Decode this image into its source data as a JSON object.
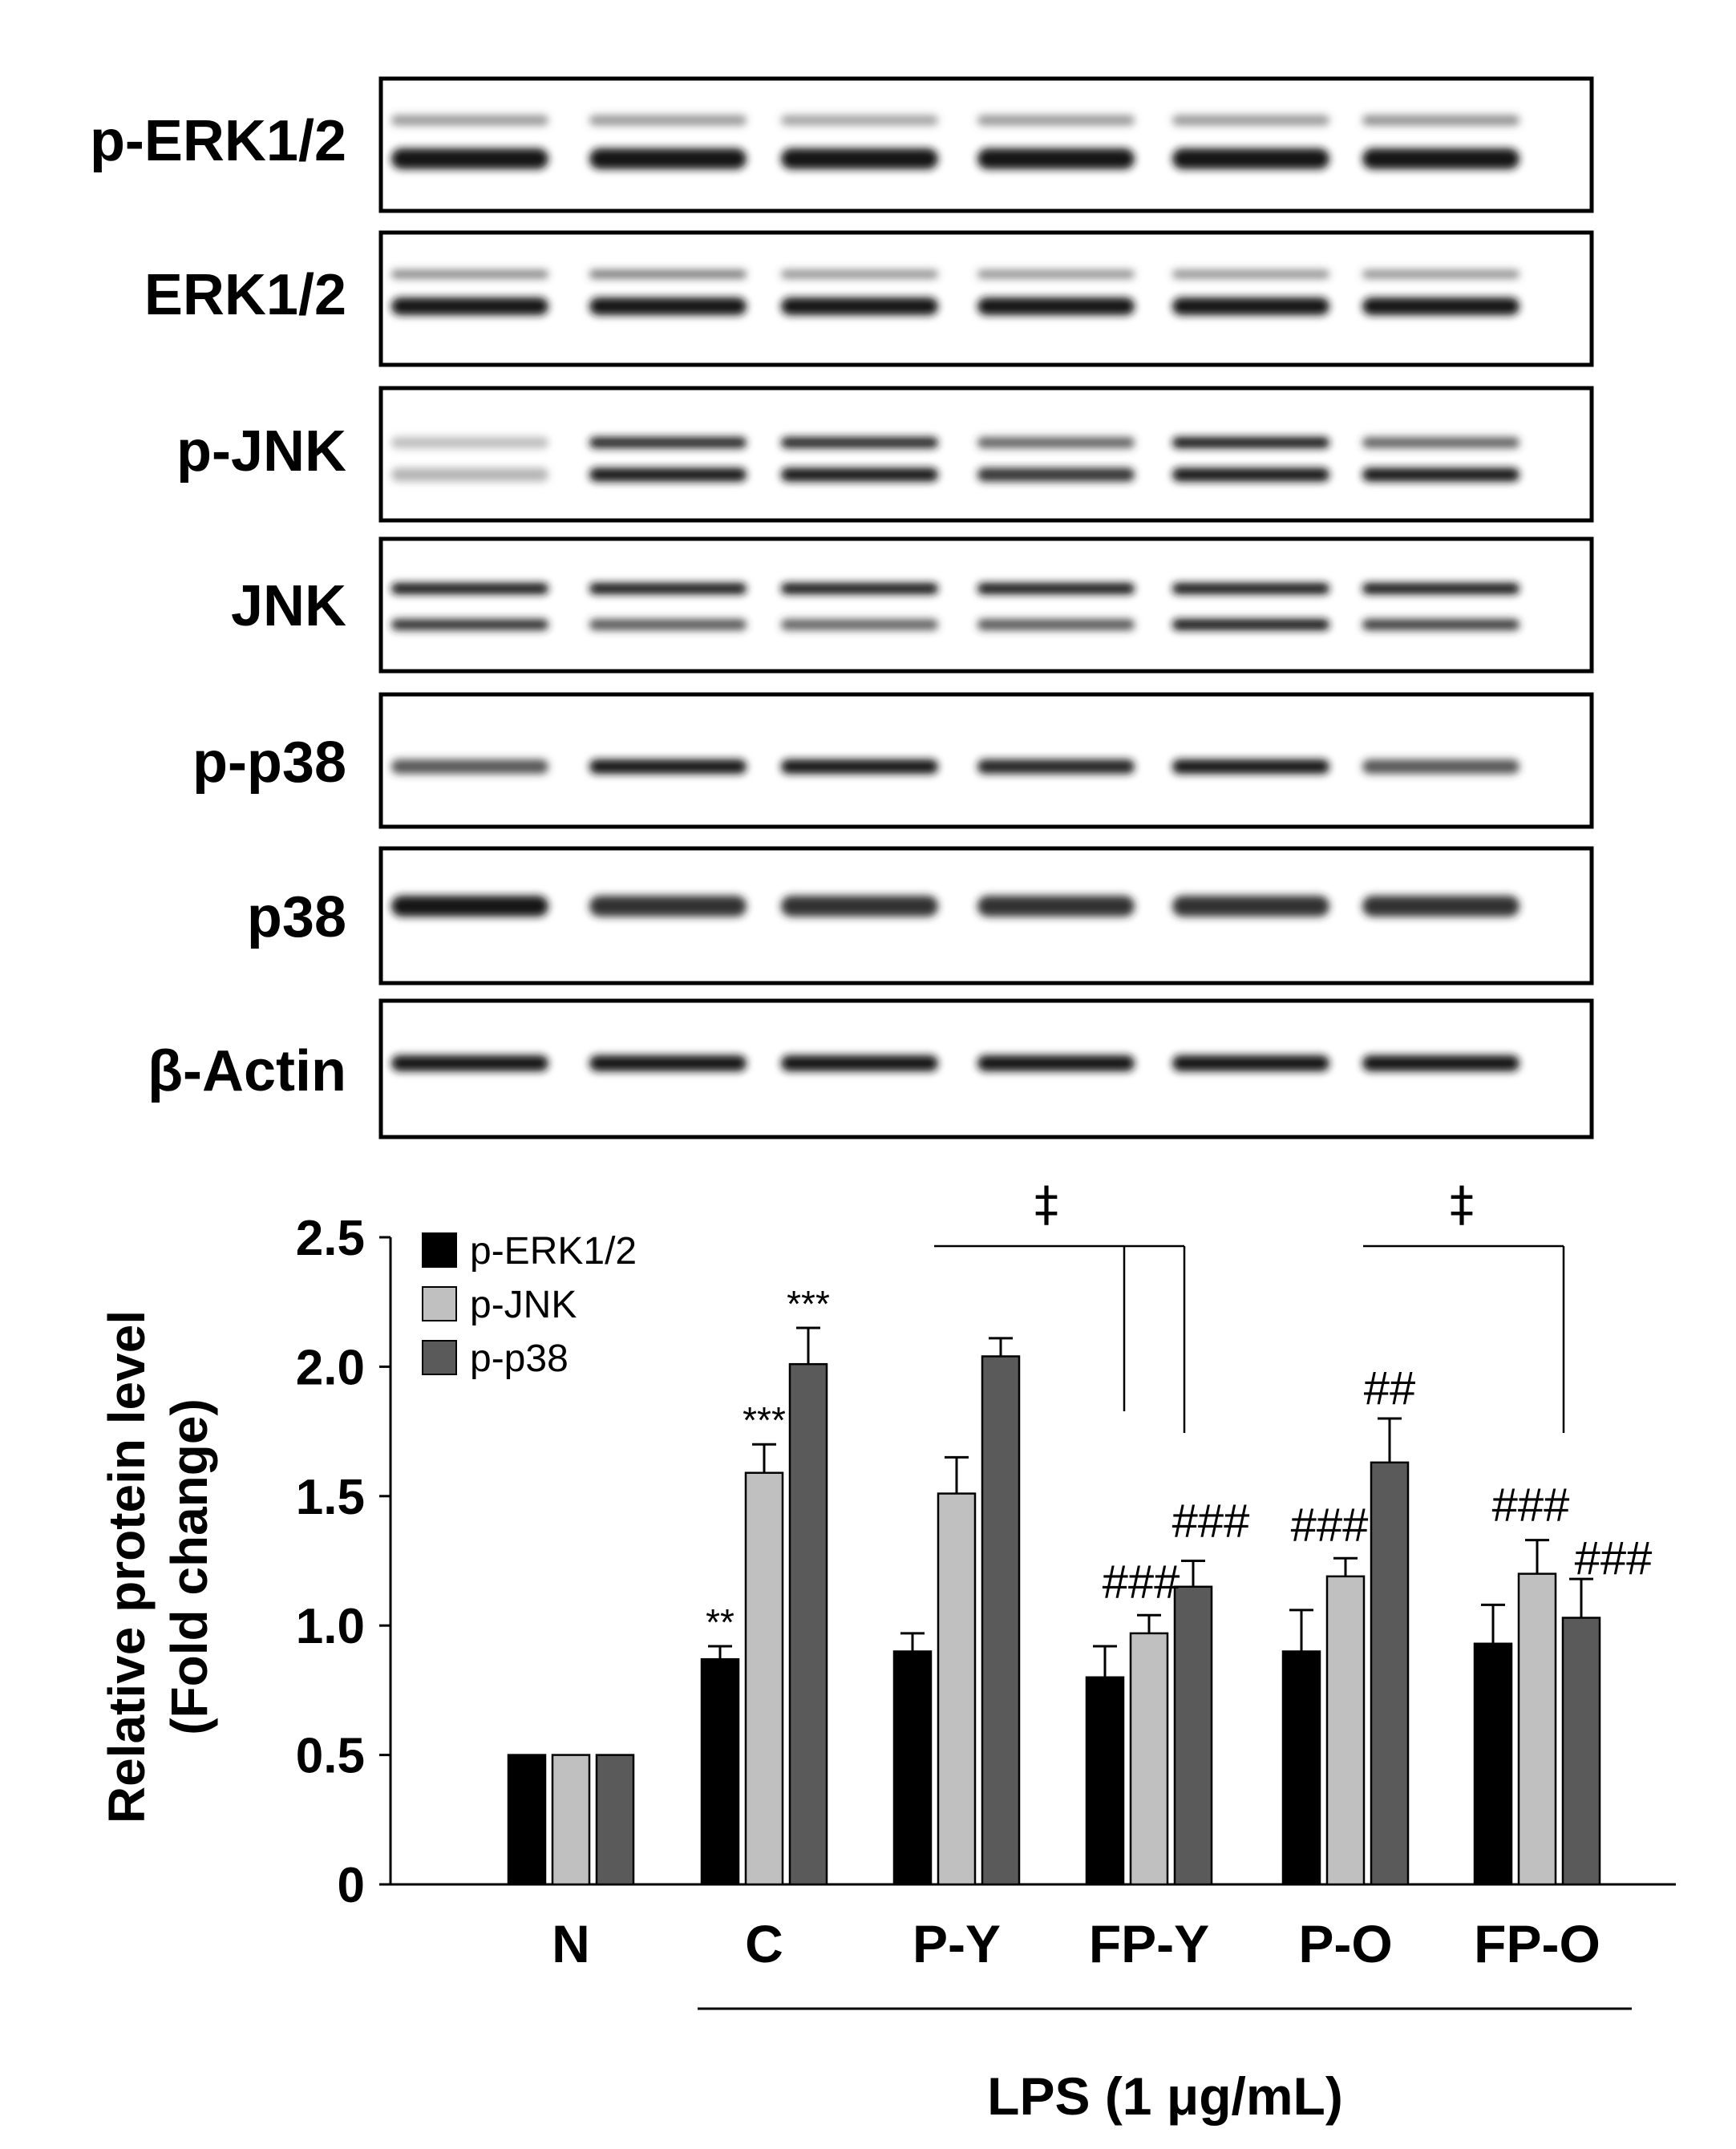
{
  "blot": {
    "labels": [
      "p-ERK1/2",
      "ERK1/2",
      "p-JNK",
      "JNK",
      "p-p38",
      "p38",
      "β-Actin"
    ],
    "lanes": 6
  },
  "chart_data": {
    "type": "bar",
    "ylabel": "Relative protein level (Fold change)",
    "ylabel_lines": [
      "Relative protein level",
      "(Fold change)"
    ],
    "ylim": [
      0,
      2.5
    ],
    "yticks": [
      "0",
      "0.5",
      "1.0",
      "1.5",
      "2.0",
      "2.5"
    ],
    "categories": [
      "N",
      "C",
      "P-Y",
      "FP-Y",
      "P-O",
      "FP-O"
    ],
    "treatment_label": "LPS (1 μg/mL)",
    "legend_position": "top-left",
    "series": [
      {
        "name": "p-ERK1/2",
        "color": "#000000",
        "values": [
          0.5,
          0.87,
          0.9,
          0.8,
          0.9,
          0.93
        ],
        "errors": [
          0,
          0.05,
          0.07,
          0.12,
          0.16,
          0.15
        ]
      },
      {
        "name": "p-JNK",
        "color": "#c0c0c0",
        "values": [
          0.5,
          1.59,
          1.51,
          0.97,
          1.19,
          1.2
        ],
        "errors": [
          0,
          0.11,
          0.14,
          0.07,
          0.07,
          0.13
        ]
      },
      {
        "name": "p-p38",
        "color": "#5a5a5a",
        "values": [
          0.5,
          2.01,
          2.04,
          1.15,
          1.63,
          1.03
        ],
        "errors": [
          0,
          0.14,
          0.07,
          0.1,
          0.17,
          0.15
        ]
      }
    ],
    "annotations": [
      {
        "category": 1,
        "series": 0,
        "text": "**"
      },
      {
        "category": 1,
        "series": 1,
        "text": "***"
      },
      {
        "category": 1,
        "series": 2,
        "text": "***"
      },
      {
        "category": 3,
        "series": 1,
        "text": "###"
      },
      {
        "category": 3,
        "series": 2,
        "text": "###"
      },
      {
        "category": 4,
        "series": 1,
        "text": "###"
      },
      {
        "category": 4,
        "series": 2,
        "text": "##"
      },
      {
        "category": 5,
        "series": 1,
        "text": "###"
      },
      {
        "category": 5,
        "series": 2,
        "text": "###"
      }
    ],
    "brackets": [
      {
        "from_category": 2,
        "to_category": 3,
        "symbol": "‡"
      },
      {
        "from_category": 4,
        "to_category": 5,
        "symbol": "‡"
      }
    ]
  }
}
